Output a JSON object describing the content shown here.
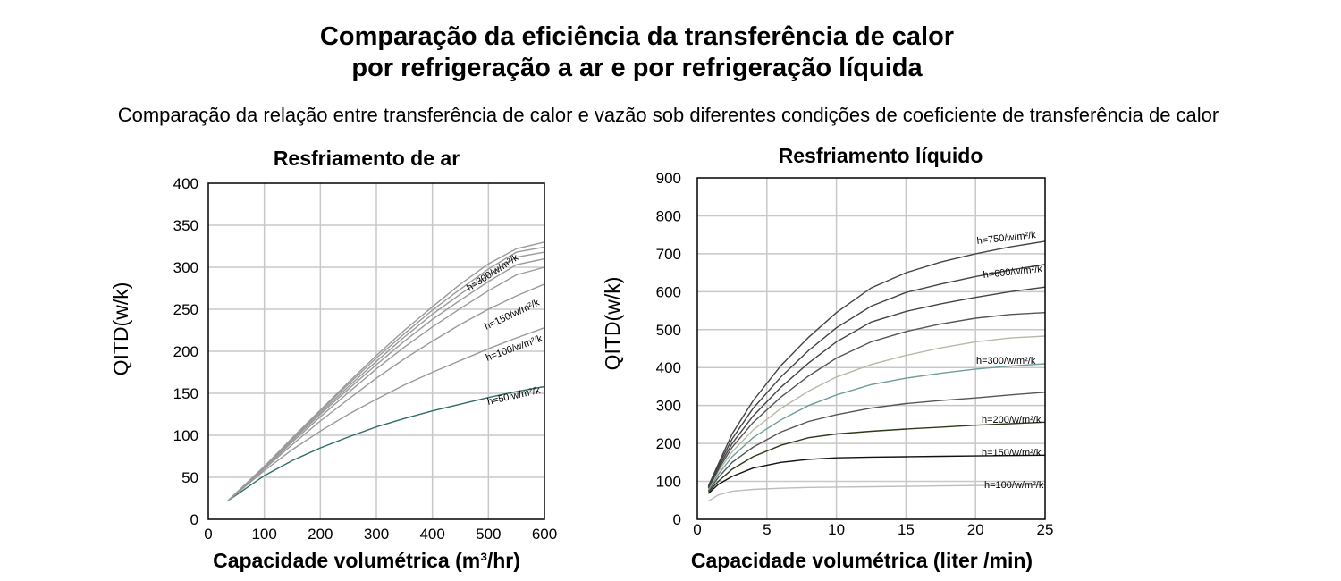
{
  "title_line1": "Comparação da eficiência da transferência de calor",
  "title_line2": "por refrigeração a ar e por refrigeração líquida",
  "subtitle": "Comparação da relação entre transferência de calor e vazão sob diferentes condições de coeficiente de transferência de calor",
  "chart_data": [
    {
      "type": "line",
      "title": "Resfriamento de ar",
      "xlabel": "Capacidade volumétrica (m³/hr)",
      "ylabel": "QITD(w/k)",
      "xlim": [
        0,
        600
      ],
      "ylim": [
        0,
        400
      ],
      "xticks": [
        0,
        100,
        200,
        300,
        400,
        500,
        600
      ],
      "xtick_labels": [
        "0",
        "100",
        "200",
        "300",
        "400",
        "500",
        "600"
      ],
      "yticks": [
        0,
        50,
        100,
        150,
        200,
        250,
        300,
        350,
        400
      ],
      "ytick_labels": [
        "0",
        "50",
        "100",
        "150",
        "200",
        "250",
        "300",
        "350",
        "400"
      ],
      "grid": true,
      "x": [
        35,
        100,
        150,
        200,
        250,
        300,
        350,
        400,
        450,
        500,
        550,
        600
      ],
      "series": [
        {
          "name": "h=50/w/m²/k",
          "color": "#2f6e66",
          "values": [
            22,
            52,
            70,
            85,
            98,
            110,
            120,
            129,
            137,
            145,
            152,
            158
          ]
        },
        {
          "name": "h=100/w/m²/k",
          "color": "#9a9a9a",
          "values": [
            22,
            58,
            83,
            105,
            125,
            143,
            160,
            175,
            189,
            203,
            216,
            228
          ]
        },
        {
          "name": "h=150/w/m²/k",
          "color": "#9a9a9a",
          "values": [
            22,
            60,
            89,
            117,
            143,
            168,
            191,
            212,
            232,
            250,
            266,
            280
          ]
        },
        {
          "name": "",
          "color": "#9a9a9a",
          "values": [
            22,
            61,
            92,
            122,
            151,
            179,
            205,
            229,
            251,
            272,
            291,
            300
          ]
        },
        {
          "name": "",
          "color": "#9a9a9a",
          "values": [
            22,
            62,
            94,
            125,
            155,
            184,
            212,
            238,
            261,
            283,
            303,
            310
          ]
        },
        {
          "name": "",
          "color": "#9a9a9a",
          "values": [
            22,
            62,
            95,
            127,
            158,
            188,
            217,
            244,
            268,
            291,
            312,
            318
          ]
        },
        {
          "name": "",
          "color": "#9a9a9a",
          "values": [
            22,
            63,
            96,
            129,
            161,
            192,
            221,
            249,
            274,
            298,
            318,
            324
          ]
        },
        {
          "name": "h=300/w/m²/k",
          "color": "#9a9a9a",
          "values": [
            22,
            63,
            97,
            130,
            163,
            195,
            225,
            253,
            280,
            304,
            322,
            330
          ]
        }
      ]
    },
    {
      "type": "line",
      "title": "Resfriamento líquido",
      "xlabel": "Capacidade volumétrica (liter /min)",
      "ylabel": "QITD(w/k)",
      "xlim": [
        0,
        25
      ],
      "ylim": [
        0,
        900
      ],
      "xticks": [
        0,
        5,
        10,
        15,
        20,
        25
      ],
      "xtick_labels": [
        "0",
        "5",
        "10",
        "15",
        "20",
        "25"
      ],
      "yticks": [
        0,
        100,
        200,
        300,
        400,
        500,
        600,
        700,
        800,
        900
      ],
      "ytick_labels": [
        "0",
        "100",
        "200",
        "300",
        "400",
        "500",
        "600",
        "700",
        "800",
        "900"
      ],
      "grid": true,
      "x": [
        0.8,
        1.5,
        2.5,
        4,
        6,
        8,
        10,
        12.5,
        15,
        17.5,
        20,
        22.5,
        25
      ],
      "series": [
        {
          "name": "h=100/w/m²/k",
          "color": "#bdbdbd",
          "values": [
            48,
            64,
            74,
            79,
            82,
            84,
            85,
            86,
            87,
            88,
            89,
            90,
            91
          ]
        },
        {
          "name": "h=150/w/m²/k",
          "color": "#111111",
          "values": [
            68,
            92,
            113,
            135,
            150,
            158,
            162,
            164,
            165,
            166,
            167,
            168,
            169
          ]
        },
        {
          "name": "h=200/w/m²/k",
          "color": "#2c3a1a",
          "values": [
            72,
            100,
            132,
            165,
            195,
            215,
            225,
            232,
            238,
            243,
            248,
            252,
            256
          ]
        },
        {
          "name": "",
          "color": "#555555",
          "values": [
            75,
            110,
            150,
            190,
            230,
            258,
            276,
            293,
            305,
            313,
            320,
            328,
            335
          ]
        },
        {
          "name": "h=300/w/m²/k",
          "color": "#6e9e9a",
          "values": [
            78,
            118,
            165,
            215,
            262,
            300,
            328,
            355,
            372,
            385,
            396,
            404,
            410
          ]
        },
        {
          "name": "",
          "color": "#b8b8a8",
          "values": [
            80,
            125,
            178,
            235,
            292,
            338,
            375,
            408,
            432,
            452,
            468,
            478,
            483
          ]
        },
        {
          "name": "",
          "color": "#555555",
          "values": [
            82,
            130,
            190,
            255,
            322,
            378,
            425,
            468,
            495,
            515,
            530,
            540,
            545
          ]
        },
        {
          "name": "",
          "color": "#444444",
          "values": [
            84,
            135,
            200,
            272,
            348,
            412,
            468,
            520,
            548,
            568,
            585,
            600,
            612
          ]
        },
        {
          "name": "h=600/w/m²/k",
          "color": "#444444",
          "values": [
            86,
            140,
            212,
            292,
            375,
            445,
            505,
            562,
            598,
            620,
            640,
            657,
            672
          ]
        },
        {
          "name": "h=750/w/m²/k",
          "color": "#444444",
          "values": [
            88,
            145,
            225,
            312,
            405,
            480,
            545,
            610,
            650,
            678,
            700,
            718,
            733
          ]
        }
      ]
    }
  ]
}
